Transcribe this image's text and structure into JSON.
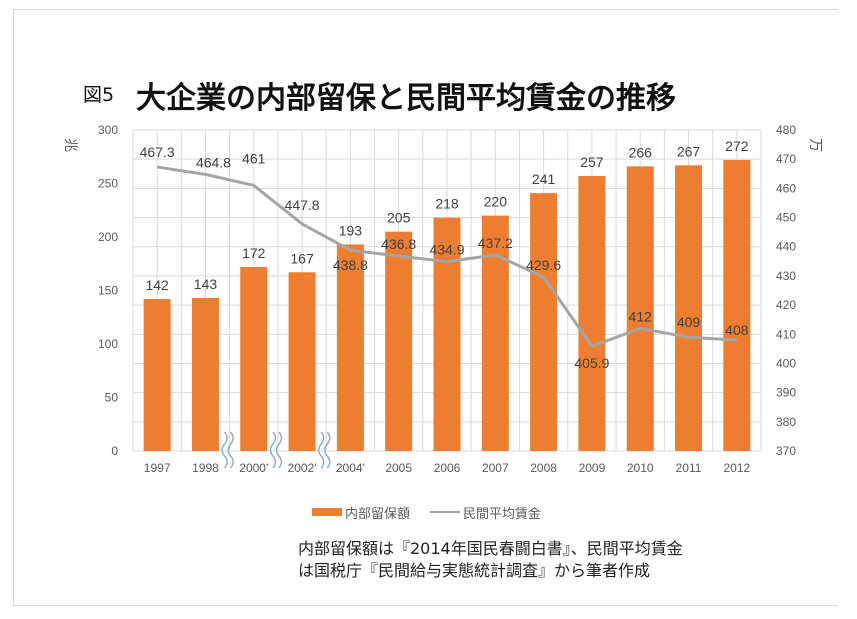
{
  "figure_label": "図5",
  "title": "大企業の内部留保と民間平均賃金の推移",
  "colors": {
    "bar": "#ED7D31",
    "line": "#A5A5A5",
    "grid": "#D9D9D9",
    "break_mark": "#8EA9C8"
  },
  "note_lines": [
    "内部留保額は『2014年国民春闘白書』、民間平均賃金",
    "は国税庁『民間給与実態統計調査』から筆者作成"
  ],
  "chart_data": {
    "type": "bar",
    "title": "大企業の内部留保と民間平均賃金の推移",
    "categories": [
      "1997",
      "1998",
      "2000'",
      "2002'",
      "2004'",
      "2005",
      "2006",
      "2007",
      "2008",
      "2009",
      "2010",
      "2011",
      "2012"
    ],
    "axis_break_after": [
      "1998",
      "2000'",
      "2002'"
    ],
    "series": [
      {
        "name": "内部留保額",
        "type": "bar",
        "axis": "left",
        "values": [
          142,
          143,
          172,
          167,
          193,
          205,
          218,
          220,
          241,
          257,
          266,
          267,
          272
        ],
        "labels": [
          "142",
          "143",
          "172",
          "167",
          "193",
          "205",
          "218",
          "220",
          "241",
          "257",
          "266",
          "267",
          "272"
        ]
      },
      {
        "name": "民間平均賃金",
        "type": "line",
        "axis": "right",
        "values": [
          467.3,
          464.8,
          461,
          447.8,
          438.8,
          436.8,
          434.9,
          437.2,
          429.6,
          405.9,
          412,
          409,
          408
        ],
        "labels": [
          "467.3",
          "464.8",
          "461",
          "447.8",
          "438.8",
          "436.8",
          "434.9",
          "437.2",
          "429.6",
          "405.9",
          "412",
          "409",
          "408"
        ]
      }
    ],
    "ylabel_left": "兆",
    "ylabel_right": "万",
    "ylim_left": [
      0,
      300
    ],
    "ylim_right": [
      370,
      480
    ],
    "yticks_left": [
      "0",
      "50",
      "100",
      "150",
      "200",
      "250",
      "300"
    ],
    "yticks_right": [
      "370",
      "380",
      "390",
      "400",
      "410",
      "420",
      "430",
      "440",
      "450",
      "460",
      "470",
      "480"
    ],
    "grid": true,
    "legend": {
      "position": "bottom",
      "entries": [
        "内部留保額",
        "民間平均賃金"
      ]
    }
  }
}
